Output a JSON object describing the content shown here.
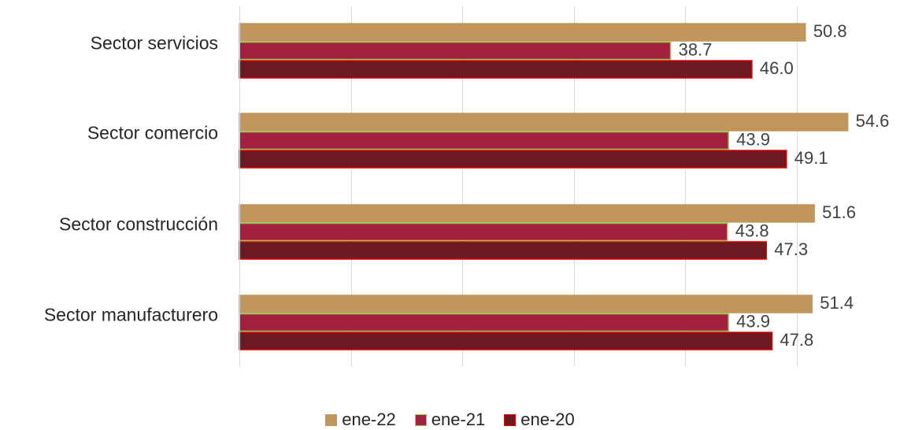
{
  "chart_data": {
    "type": "bar",
    "orientation": "horizontal",
    "categories": [
      "Sector servicios",
      "Sector comercio",
      "Sector construcción",
      "Sector manufacturero"
    ],
    "series": [
      {
        "name": "ene-22",
        "values": [
          50.8,
          54.6,
          51.6,
          51.4
        ],
        "color": "#C0965D",
        "stroke": "#C0965D"
      },
      {
        "name": "ene-21",
        "values": [
          38.7,
          43.9,
          43.8,
          43.9
        ],
        "color": "#A3213F",
        "stroke": "#92D050"
      },
      {
        "name": "ene-20",
        "values": [
          46.0,
          49.1,
          47.3,
          47.8
        ],
        "color": "#6B1A22",
        "stroke": "#E00000"
      }
    ],
    "value_labels": [
      [
        "50.8",
        "54.6",
        "51.6",
        "51.4"
      ],
      [
        "38.7",
        "43.9",
        "43.8",
        "43.9"
      ],
      [
        "46.0",
        "49.1",
        "47.3",
        "47.8"
      ]
    ],
    "xlim": [
      0,
      60
    ],
    "grid": "vertical",
    "legend_position": "bottom",
    "title": "",
    "xlabel": "",
    "ylabel": ""
  }
}
